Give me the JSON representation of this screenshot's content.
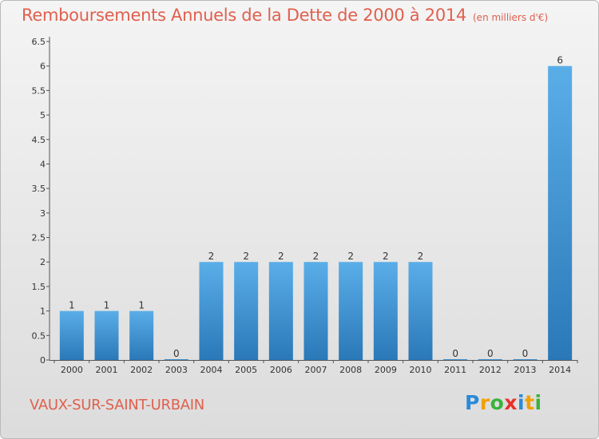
{
  "title": "Remboursements Annuels de la Dette de 2000 à 2014",
  "unit": "(en milliers d'€)",
  "town": "VAUX-SUR-SAINT-URBAIN",
  "logo": "Proxiti",
  "chart_data": {
    "type": "bar",
    "title": "Remboursements Annuels de la Dette de 2000 à 2014",
    "subtitle": "(en milliers d'€)",
    "xlabel": "",
    "ylabel": "",
    "categories": [
      "2000",
      "2001",
      "2002",
      "2003",
      "2004",
      "2005",
      "2006",
      "2007",
      "2008",
      "2009",
      "2010",
      "2011",
      "2012",
      "2013",
      "2014"
    ],
    "values": [
      1,
      1,
      1,
      0,
      2,
      2,
      2,
      2,
      2,
      2,
      2,
      0,
      0,
      0,
      6
    ],
    "data_labels": [
      "1",
      "1",
      "1",
      "0",
      "2",
      "2",
      "2",
      "2",
      "2",
      "2",
      "2",
      "0",
      "0",
      "0",
      "6"
    ],
    "ylim": [
      0,
      6.5
    ],
    "yticks": [
      0,
      0.5,
      1,
      1.5,
      2,
      2.5,
      3,
      3.5,
      4,
      4.5,
      5,
      5.5,
      6,
      6.5
    ],
    "ytick_labels": [
      "0",
      "0.5",
      "1",
      "1.5",
      "2",
      "2.5",
      "3",
      "3.5",
      "4",
      "4.5",
      "5",
      "5.5",
      "6",
      "6.5"
    ],
    "grid": false,
    "legend": "none",
    "bar_color": "#3d94d6"
  }
}
